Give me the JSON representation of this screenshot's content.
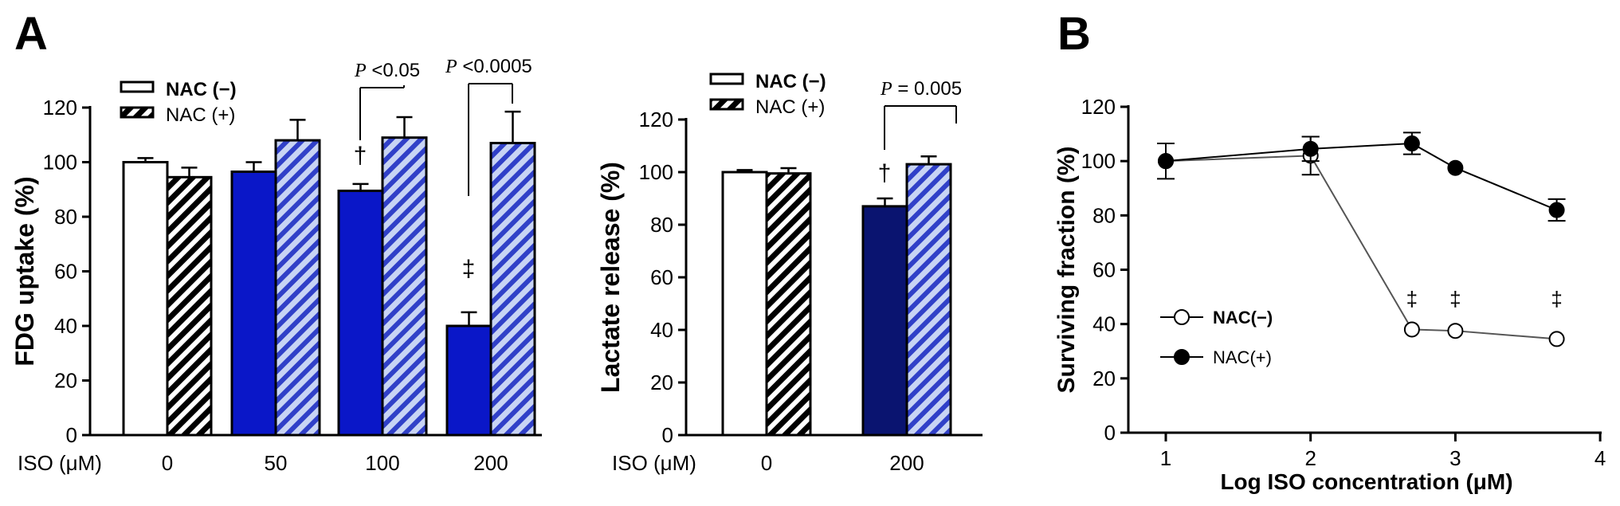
{
  "panel_labels": {
    "a": "A",
    "b": "B"
  },
  "colors": {
    "nac_minus_white": "#ffffff",
    "nac_plus_black": "#000000",
    "blue": "#0a17c8",
    "navy": "#0a1470",
    "stripe_blue": "#3040c8",
    "stripe_light": "#c8d4f4"
  },
  "chart_data": [
    {
      "type": "bar",
      "panel": "A",
      "ylabel": "FDG uptake (%)",
      "xlabel": "ISO (μM)",
      "categories": [
        "0",
        "50",
        "100",
        "200"
      ],
      "ylim": [
        0,
        120
      ],
      "yticks": [
        "0",
        "20",
        "40",
        "60",
        "80",
        "100",
        "120"
      ],
      "legend": [
        "NAC (−)",
        "NAC (+)"
      ],
      "series": [
        {
          "name": "NAC (−)",
          "values": [
            100,
            96.5,
            89.5,
            40
          ],
          "errors": [
            1.5,
            3.5,
            2.5,
            5
          ]
        },
        {
          "name": "NAC (+)",
          "values": [
            94.5,
            108,
            109,
            107
          ],
          "errors": [
            3.5,
            7.5,
            7.5,
            11.5
          ]
        }
      ],
      "annotations": [
        {
          "category": "100",
          "label_italic": "P",
          "label_text": " <0.05"
        },
        {
          "category": "200",
          "label_italic": "P",
          "label_text": " <0.0005"
        },
        {
          "category": "100",
          "symbol": "†"
        },
        {
          "category": "200",
          "symbol": "‡"
        }
      ]
    },
    {
      "type": "bar",
      "panel": "A",
      "ylabel": "Lactate release (%)",
      "xlabel": "ISO (μM)",
      "categories": [
        "0",
        "200"
      ],
      "ylim": [
        0,
        120
      ],
      "yticks": [
        "0",
        "20",
        "40",
        "60",
        "80",
        "100",
        "120"
      ],
      "legend": [
        "NAC (−)",
        "NAC (+)"
      ],
      "series": [
        {
          "name": "NAC (−)",
          "values": [
            100,
            87
          ],
          "errors": [
            0.8,
            3
          ]
        },
        {
          "name": "NAC (+)",
          "values": [
            99.5,
            103
          ],
          "errors": [
            2,
            3
          ]
        }
      ],
      "annotations": [
        {
          "category": "200",
          "label_italic": "P",
          "label_text": " = 0.005"
        },
        {
          "category": "200",
          "symbol": "†"
        }
      ]
    },
    {
      "type": "line",
      "panel": "B",
      "ylabel": "Surviving fraction (%)",
      "xlabel": "Log ISO concentration (μM)",
      "xlim": [
        0.7,
        4
      ],
      "ylim": [
        0,
        120
      ],
      "xticks": [
        "1",
        "2",
        "3",
        "4"
      ],
      "yticks": [
        "0",
        "20",
        "40",
        "60",
        "80",
        "100",
        "120"
      ],
      "legend": [
        "NAC(−)",
        "NAC(+)"
      ],
      "series": [
        {
          "name": "NAC(−)",
          "marker": "open-circle",
          "x": [
            1,
            2,
            2.7,
            3,
            3.7
          ],
          "y": [
            100,
            102,
            38,
            37.5,
            34.5
          ],
          "errors": [
            6.5,
            7,
            0,
            0,
            0
          ]
        },
        {
          "name": "NAC(+)",
          "marker": "filled-circle",
          "x": [
            1,
            2,
            2.7,
            3,
            3.7
          ],
          "y": [
            100,
            104.5,
            106.5,
            97.5,
            82
          ],
          "errors": [
            0,
            4.5,
            4,
            0,
            4
          ]
        }
      ],
      "annotations": [
        {
          "x": 2.7,
          "symbol": "‡"
        },
        {
          "x": 3,
          "symbol": "‡"
        },
        {
          "x": 3.7,
          "symbol": "‡"
        }
      ]
    }
  ]
}
